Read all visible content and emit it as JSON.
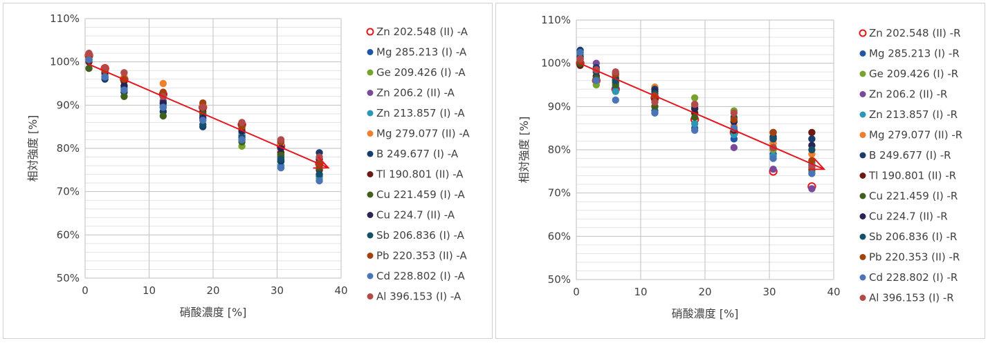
{
  "chart_data": [
    {
      "type": "scatter",
      "title": "",
      "xlabel": "硝酸濃度 [%]",
      "ylabel": "相対強度 [%]",
      "xlim": [
        0,
        40
      ],
      "ylim": [
        50,
        110
      ],
      "x_ticks": [
        "0",
        "10",
        "20",
        "30",
        "40"
      ],
      "y_ticks": [
        "50%",
        "60%",
        "70%",
        "80%",
        "90%",
        "100%",
        "110%"
      ],
      "grid": true,
      "legend": "right",
      "trend_arrow": {
        "from": [
          0.5,
          99.5
        ],
        "to": [
          38.0,
          75.5
        ],
        "color": "#e8141c"
      },
      "x": [
        0.6,
        3.1,
        6.1,
        12.2,
        18.4,
        24.5,
        30.6,
        36.6
      ],
      "series": [
        {
          "name": "Zn 202.548 (II) -A",
          "color": "#e8141c",
          "hollow": true,
          "values": [
            101.5,
            98.5,
            96.0,
            92.5,
            89.5,
            85.5,
            80.5,
            76.5
          ]
        },
        {
          "name": "Mg 285.213 (I) -A",
          "color": "#2155a6",
          "values": [
            100.5,
            96.5,
            94.0,
            90.5,
            87.5,
            83.0,
            78.0,
            73.5
          ]
        },
        {
          "name": "Ge 209.426 (I) -A",
          "color": "#78a22f",
          "values": [
            100.5,
            97.0,
            93.0,
            88.5,
            86.5,
            80.5,
            77.0,
            73.0
          ]
        },
        {
          "name": "Zn 206.2 (II) -A",
          "color": "#7a4a9a",
          "values": [
            101.0,
            97.5,
            94.5,
            91.0,
            87.5,
            84.5,
            80.5,
            76.0
          ]
        },
        {
          "name": "Zn 213.857 (I) -A",
          "color": "#2b97b5",
          "values": [
            100.5,
            97.5,
            94.0,
            90.0,
            87.0,
            83.5,
            76.0,
            73.5
          ]
        },
        {
          "name": "Mg 279.077 (II) -A",
          "color": "#f07f2c",
          "values": [
            101.5,
            98.5,
            96.5,
            95.0,
            90.0,
            84.5,
            81.0,
            77.5
          ]
        },
        {
          "name": "B 249.677 (I) -A",
          "color": "#173c6b",
          "values": [
            101.0,
            96.0,
            93.0,
            88.5,
            85.0,
            82.0,
            77.0,
            79.0
          ]
        },
        {
          "name": "Tl 190.801 (II) -A",
          "color": "#6b1a14",
          "values": [
            100.0,
            97.5,
            95.5,
            92.5,
            88.5,
            85.5,
            79.0,
            75.0
          ]
        },
        {
          "name": "Cu 221.459 (I) -A",
          "color": "#405e1c",
          "values": [
            98.5,
            96.5,
            92.0,
            87.5,
            88.0,
            81.5,
            78.5,
            75.5
          ]
        },
        {
          "name": "Cu 224.7 (II) -A",
          "color": "#2a2455",
          "values": [
            101.0,
            97.5,
            94.5,
            90.5,
            87.0,
            84.0,
            80.0,
            77.5
          ]
        },
        {
          "name": "Sb 206.836 (I) -A",
          "color": "#14506a",
          "values": [
            100.5,
            96.5,
            93.5,
            89.5,
            85.5,
            82.5,
            77.5,
            74.0
          ]
        },
        {
          "name": "Pb 220.353 (II) -A",
          "color": "#a2420f",
          "values": [
            101.0,
            98.0,
            96.0,
            93.0,
            90.5,
            85.0,
            81.5,
            76.5
          ]
        },
        {
          "name": "Cd 228.802 (I) -A",
          "color": "#4a74b5",
          "values": [
            100.5,
            96.5,
            93.5,
            89.5,
            86.5,
            82.0,
            75.5,
            72.5
          ]
        },
        {
          "name": "Al 396.153 (I) -A",
          "color": "#b24a4a",
          "values": [
            102.0,
            98.5,
            97.5,
            92.0,
            89.5,
            86.0,
            82.0,
            78.0
          ]
        }
      ]
    },
    {
      "type": "scatter",
      "title": "",
      "xlabel": "硝酸濃度 [%]",
      "ylabel": "相対強度 [%]",
      "xlim": [
        0,
        40
      ],
      "ylim": [
        50,
        110
      ],
      "x_ticks": [
        "0",
        "10",
        "20",
        "30",
        "40"
      ],
      "y_ticks": [
        "50%",
        "60%",
        "70%",
        "80%",
        "90%",
        "100%",
        "110%"
      ],
      "grid": true,
      "legend": "right",
      "trend_arrow": {
        "from": [
          0.5,
          100.0
        ],
        "to": [
          38.5,
          75.5
        ],
        "color": "#e8141c"
      },
      "x": [
        0.6,
        3.1,
        6.1,
        12.2,
        18.4,
        24.5,
        30.6,
        36.6
      ],
      "series": [
        {
          "name": "Zn 202.548 (II) -R",
          "color": "#e8141c",
          "hollow": true,
          "values": [
            100.0,
            96.0,
            94.0,
            92.0,
            87.0,
            84.0,
            75.0,
            71.5
          ]
        },
        {
          "name": "Mg 285.213 (I) -R",
          "color": "#2155a6",
          "values": [
            101.5,
            97.0,
            94.5,
            89.0,
            85.0,
            82.5,
            79.0,
            76.5
          ]
        },
        {
          "name": "Ge 209.426 (I) -R",
          "color": "#78a22f",
          "values": [
            100.5,
            95.0,
            93.5,
            90.0,
            92.0,
            89.0,
            80.0,
            75.0
          ]
        },
        {
          "name": "Zn 206.2 (II) -R",
          "color": "#7a4a9a",
          "values": [
            101.0,
            100.0,
            97.5,
            92.5,
            88.5,
            80.5,
            75.5,
            71.0
          ]
        },
        {
          "name": "Zn 213.857 (I) -R",
          "color": "#2b97b5",
          "values": [
            102.0,
            96.5,
            93.5,
            88.5,
            86.0,
            83.5,
            78.5,
            77.0
          ]
        },
        {
          "name": "Mg 279.077 (II) -R",
          "color": "#f07f2c",
          "values": [
            101.0,
            98.0,
            97.0,
            94.5,
            90.0,
            85.5,
            81.5,
            79.0
          ]
        },
        {
          "name": "B 249.677 (I) -R",
          "color": "#173c6b",
          "values": [
            103.0,
            99.0,
            96.5,
            94.0,
            89.5,
            86.5,
            84.0,
            82.5
          ]
        },
        {
          "name": "Tl 190.801 (II) -R",
          "color": "#6b1a14",
          "values": [
            99.5,
            97.0,
            95.5,
            91.5,
            88.5,
            84.5,
            82.5,
            84.0
          ]
        },
        {
          "name": "Cu 221.459 (I) -R",
          "color": "#405e1c",
          "values": [
            100.0,
            96.5,
            95.0,
            90.0,
            87.5,
            85.0,
            80.5,
            75.5
          ]
        },
        {
          "name": "Cu 224.7 (II) -R",
          "color": "#2a2455",
          "values": [
            102.5,
            98.5,
            96.0,
            93.5,
            89.5,
            86.5,
            83.0,
            81.0
          ]
        },
        {
          "name": "Sb 206.836 (I) -R",
          "color": "#14506a",
          "values": [
            101.5,
            98.0,
            96.0,
            93.0,
            90.5,
            87.5,
            82.5,
            80.0
          ]
        },
        {
          "name": "Pb 220.353 (II) -R",
          "color": "#a2420f",
          "values": [
            100.5,
            98.5,
            97.5,
            92.5,
            90.5,
            87.0,
            84.0,
            77.5
          ]
        },
        {
          "name": "Cd 228.802 (I) -R",
          "color": "#4a74b5",
          "values": [
            102.5,
            96.0,
            91.5,
            88.5,
            84.5,
            85.0,
            78.0,
            74.5
          ]
        },
        {
          "name": "Al 396.153 (I) -R",
          "color": "#b24a4a",
          "values": [
            101.0,
            98.5,
            98.0,
            91.0,
            90.5,
            88.5,
            80.5,
            76.0
          ]
        }
      ]
    }
  ]
}
